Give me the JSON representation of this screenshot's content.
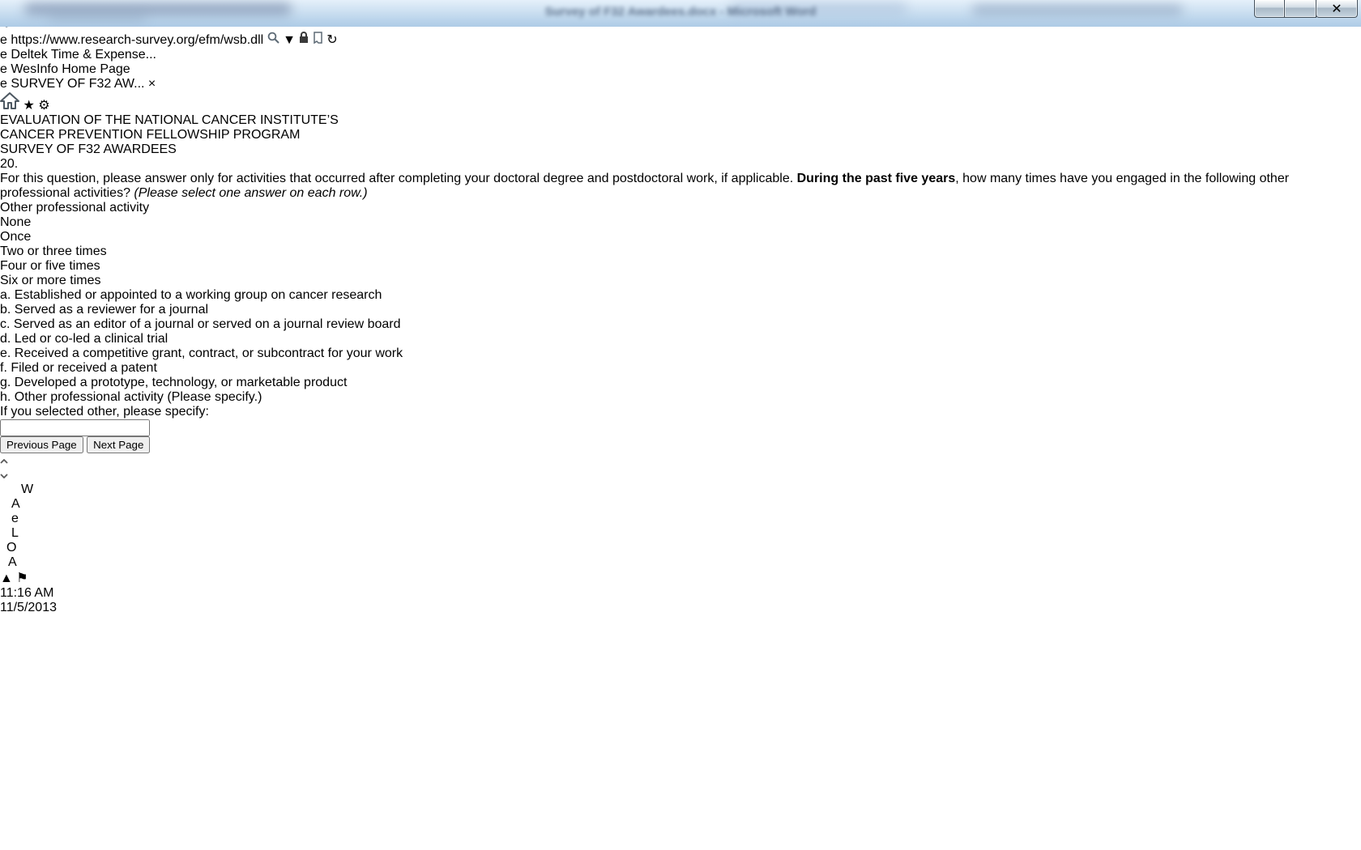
{
  "window": {
    "blurred_title": "Survey of F32 Awardees.docx - Microsoft Word"
  },
  "browser": {
    "url_scheme_host": "https://www.research-survey.org",
    "url_path": "/efm/wsb.dll",
    "tabs": [
      {
        "label": "Deltek Time & Expense...",
        "state": "notification"
      },
      {
        "label": "WesInfo Home Page",
        "state": "inactive"
      },
      {
        "label": "SURVEY OF F32 AW...",
        "state": "active",
        "close": "×"
      }
    ]
  },
  "survey": {
    "header_lines": [
      "EVALUATION OF THE NATIONAL CANCER INSTITUTE’S",
      "CANCER PREVENTION FELLOWSHIP PROGRAM",
      "SURVEY OF F32 AWARDEES"
    ],
    "question": {
      "number": "20.",
      "part1": "For this question, please answer only for activities that occurred after completing your doctoral degree and postdoctoral work, if applicable. ",
      "bold": "During the past five years",
      "part2": ", how many times have you engaged in the following other professional activities? ",
      "italic": "(Please select one answer on each row.)"
    },
    "table": {
      "activity_header": "Other professional activity",
      "columns": [
        "None",
        "Once",
        "Two or three times",
        "Four or five times",
        "Six or more times"
      ],
      "rows": [
        "a. Established or appointed to a working group on cancer research",
        "b. Served as a reviewer for a journal",
        "c. Served as an editor of a journal or served on a journal review board",
        "d. Led or co-led a clinical trial",
        "e. Received a competitive grant, contract, or subcontract for your work",
        "f. Filed or received a patent",
        "g. Developed a prototype, technology, or marketable product",
        "h. Other professional activity (Please specify.)"
      ]
    },
    "other_label": "If you selected other, please specify:",
    "other_value": "",
    "buttons": {
      "previous": "Previous Page",
      "next": "Next Page"
    }
  },
  "taskbar": {
    "icons": [
      "start-orb",
      "media-player",
      "word",
      "adobe-reader-dark",
      "explorer-folder",
      "internet-explorer",
      "notepad",
      "lync",
      "outlook",
      "document",
      "acrobat-red"
    ],
    "tray": {
      "time": "11:16 AM",
      "date": "11/5/2013"
    }
  },
  "colors": {
    "survey_header_bg": "#1d6d9e",
    "survey_header_text": "#cfe9f5",
    "light_band": "#cde9f4",
    "table_blue": "#c4e4f1",
    "notification_tab": "#f7b500",
    "chrome_accent_line": "#2273b8"
  }
}
